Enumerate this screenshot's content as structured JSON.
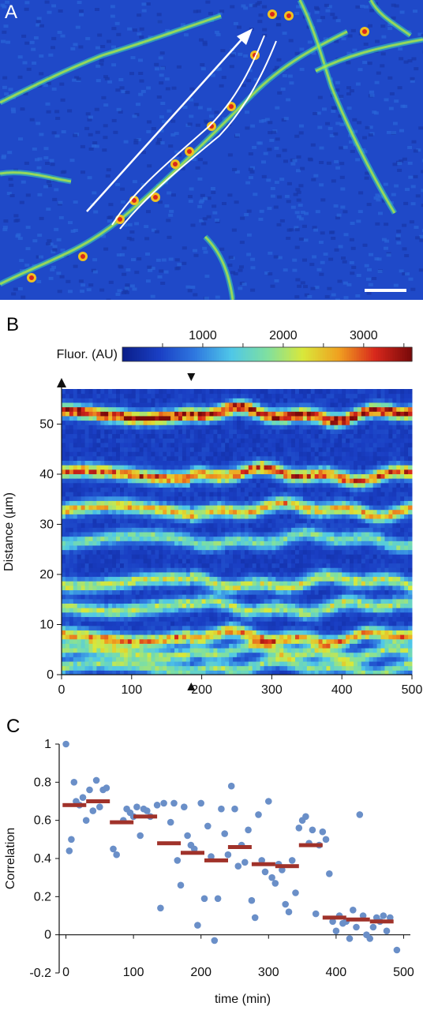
{
  "panels": {
    "a_letter": "A",
    "b_letter": "B",
    "c_letter": "C"
  },
  "chart_data": [
    {
      "type": "heatmap",
      "panel": "A",
      "title": "",
      "description_visible": "fluorescence micrograph with arrow and outlined dendrite region",
      "colormap": [
        "#0b1f8a",
        "#1a3fc4",
        "#2f79e0",
        "#4fc7e8",
        "#7fe0a0",
        "#d9e83a",
        "#f0a020",
        "#d8281c",
        "#7a0a0a"
      ]
    },
    {
      "type": "heatmap",
      "panel": "B",
      "colorbar_label": "Fluor. (AU)",
      "colorbar_ticks": [
        1000,
        2000,
        3000
      ],
      "colorbar_range": [
        0,
        3600
      ],
      "xlabel": "",
      "ylabel": "Distance (µm)",
      "xlim": [
        0,
        500
      ],
      "ylim": [
        0,
        57
      ],
      "xticks": [
        0,
        100,
        200,
        300,
        400,
        500
      ],
      "yticks": [
        0,
        10,
        20,
        30,
        40,
        50
      ],
      "marker_time": 185,
      "bands": [
        {
          "y": 1.5,
          "intensity": 1500
        },
        {
          "y": 4.5,
          "intensity": 1600
        },
        {
          "y": 7.5,
          "intensity": 2400
        },
        {
          "y": 13.5,
          "intensity": 1700
        },
        {
          "y": 18.5,
          "intensity": 1800
        },
        {
          "y": 27,
          "intensity": 1400
        },
        {
          "y": 33,
          "intensity": 2200
        },
        {
          "y": 40,
          "intensity": 2700
        },
        {
          "y": 52,
          "intensity": 3200
        }
      ]
    },
    {
      "type": "scatter",
      "panel": "C",
      "xlabel": "time (min)",
      "ylabel": "Correlation",
      "xlim": [
        -10,
        510
      ],
      "ylim": [
        -0.2,
        1.0
      ],
      "xticks": [
        0,
        100,
        200,
        300,
        400,
        500
      ],
      "yticks": [
        -0.2,
        0,
        0.2,
        0.4,
        0.6,
        0.8,
        1
      ],
      "ytick_labels": [
        "-0.2",
        "0",
        "0.2",
        "0.4",
        "0.6",
        "0.8",
        "1"
      ],
      "point_color": "#6a8fc8",
      "mean_color": "#a0322a",
      "points": [
        [
          0,
          1.0
        ],
        [
          5,
          0.44
        ],
        [
          8,
          0.5
        ],
        [
          12,
          0.8
        ],
        [
          15,
          0.7
        ],
        [
          20,
          0.68
        ],
        [
          25,
          0.72
        ],
        [
          30,
          0.6
        ],
        [
          35,
          0.76
        ],
        [
          40,
          0.65
        ],
        [
          45,
          0.81
        ],
        [
          50,
          0.67
        ],
        [
          55,
          0.76
        ],
        [
          60,
          0.77
        ],
        [
          70,
          0.45
        ],
        [
          75,
          0.42
        ],
        [
          85,
          0.6
        ],
        [
          90,
          0.66
        ],
        [
          95,
          0.64
        ],
        [
          100,
          0.62
        ],
        [
          105,
          0.67
        ],
        [
          110,
          0.52
        ],
        [
          115,
          0.66
        ],
        [
          120,
          0.65
        ],
        [
          125,
          0.62
        ],
        [
          135,
          0.68
        ],
        [
          140,
          0.14
        ],
        [
          145,
          0.69
        ],
        [
          155,
          0.59
        ],
        [
          160,
          0.69
        ],
        [
          165,
          0.39
        ],
        [
          170,
          0.26
        ],
        [
          175,
          0.67
        ],
        [
          180,
          0.52
        ],
        [
          185,
          0.47
        ],
        [
          190,
          0.45
        ],
        [
          195,
          0.05
        ],
        [
          200,
          0.69
        ],
        [
          205,
          0.19
        ],
        [
          210,
          0.57
        ],
        [
          215,
          0.41
        ],
        [
          220,
          -0.03
        ],
        [
          225,
          0.19
        ],
        [
          230,
          0.66
        ],
        [
          235,
          0.53
        ],
        [
          240,
          0.42
        ],
        [
          245,
          0.78
        ],
        [
          250,
          0.66
        ],
        [
          255,
          0.36
        ],
        [
          260,
          0.47
        ],
        [
          265,
          0.38
        ],
        [
          270,
          0.55
        ],
        [
          275,
          0.18
        ],
        [
          280,
          0.09
        ],
        [
          285,
          0.63
        ],
        [
          290,
          0.39
        ],
        [
          295,
          0.33
        ],
        [
          300,
          0.7
        ],
        [
          305,
          0.3
        ],
        [
          310,
          0.27
        ],
        [
          315,
          0.37
        ],
        [
          320,
          0.34
        ],
        [
          325,
          0.16
        ],
        [
          330,
          0.12
        ],
        [
          335,
          0.39
        ],
        [
          340,
          0.22
        ],
        [
          345,
          0.56
        ],
        [
          350,
          0.6
        ],
        [
          355,
          0.62
        ],
        [
          360,
          0.48
        ],
        [
          365,
          0.55
        ],
        [
          370,
          0.11
        ],
        [
          375,
          0.47
        ],
        [
          380,
          0.54
        ],
        [
          385,
          0.5
        ],
        [
          390,
          0.32
        ],
        [
          395,
          0.07
        ],
        [
          400,
          0.02
        ],
        [
          405,
          0.1
        ],
        [
          410,
          0.06
        ],
        [
          415,
          0.07
        ],
        [
          420,
          -0.02
        ],
        [
          425,
          0.13
        ],
        [
          430,
          0.04
        ],
        [
          435,
          0.63
        ],
        [
          440,
          0.1
        ],
        [
          445,
          0.0
        ],
        [
          450,
          -0.02
        ],
        [
          455,
          0.04
        ],
        [
          460,
          0.09
        ],
        [
          465,
          0.07
        ],
        [
          470,
          0.1
        ],
        [
          475,
          0.02
        ],
        [
          480,
          0.09
        ],
        [
          490,
          -0.08
        ]
      ],
      "bin_means": [
        {
          "x0": -5,
          "x1": 30,
          "y": 0.68
        },
        {
          "x0": 30,
          "x1": 65,
          "y": 0.7
        },
        {
          "x0": 65,
          "x1": 100,
          "y": 0.59
        },
        {
          "x0": 100,
          "x1": 135,
          "y": 0.62
        },
        {
          "x0": 135,
          "x1": 170,
          "y": 0.48
        },
        {
          "x0": 170,
          "x1": 205,
          "y": 0.43
        },
        {
          "x0": 205,
          "x1": 240,
          "y": 0.39
        },
        {
          "x0": 240,
          "x1": 275,
          "y": 0.46
        },
        {
          "x0": 275,
          "x1": 310,
          "y": 0.37
        },
        {
          "x0": 310,
          "x1": 345,
          "y": 0.36
        },
        {
          "x0": 345,
          "x1": 380,
          "y": 0.47
        },
        {
          "x0": 380,
          "x1": 415,
          "y": 0.09
        },
        {
          "x0": 415,
          "x1": 450,
          "y": 0.08
        },
        {
          "x0": 450,
          "x1": 485,
          "y": 0.07
        }
      ]
    }
  ]
}
